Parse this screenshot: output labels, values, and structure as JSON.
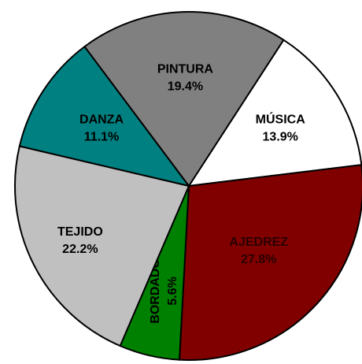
{
  "chart_data": {
    "type": "pie",
    "categories": [
      "MÚSICA",
      "AJEDREZ",
      "BORDADO",
      "TEJIDO",
      "DANZA",
      "PINTURA"
    ],
    "values": [
      13.9,
      27.8,
      5.6,
      22.2,
      11.1,
      19.4
    ],
    "value_labels": [
      "13.9%",
      "27.8%",
      "5.6%",
      "22.2%",
      "11.1%",
      "19.4%"
    ],
    "colors": [
      "#ffffff",
      "#800000",
      "#008000",
      "#c0c0c0",
      "#008080",
      "#808080"
    ]
  }
}
